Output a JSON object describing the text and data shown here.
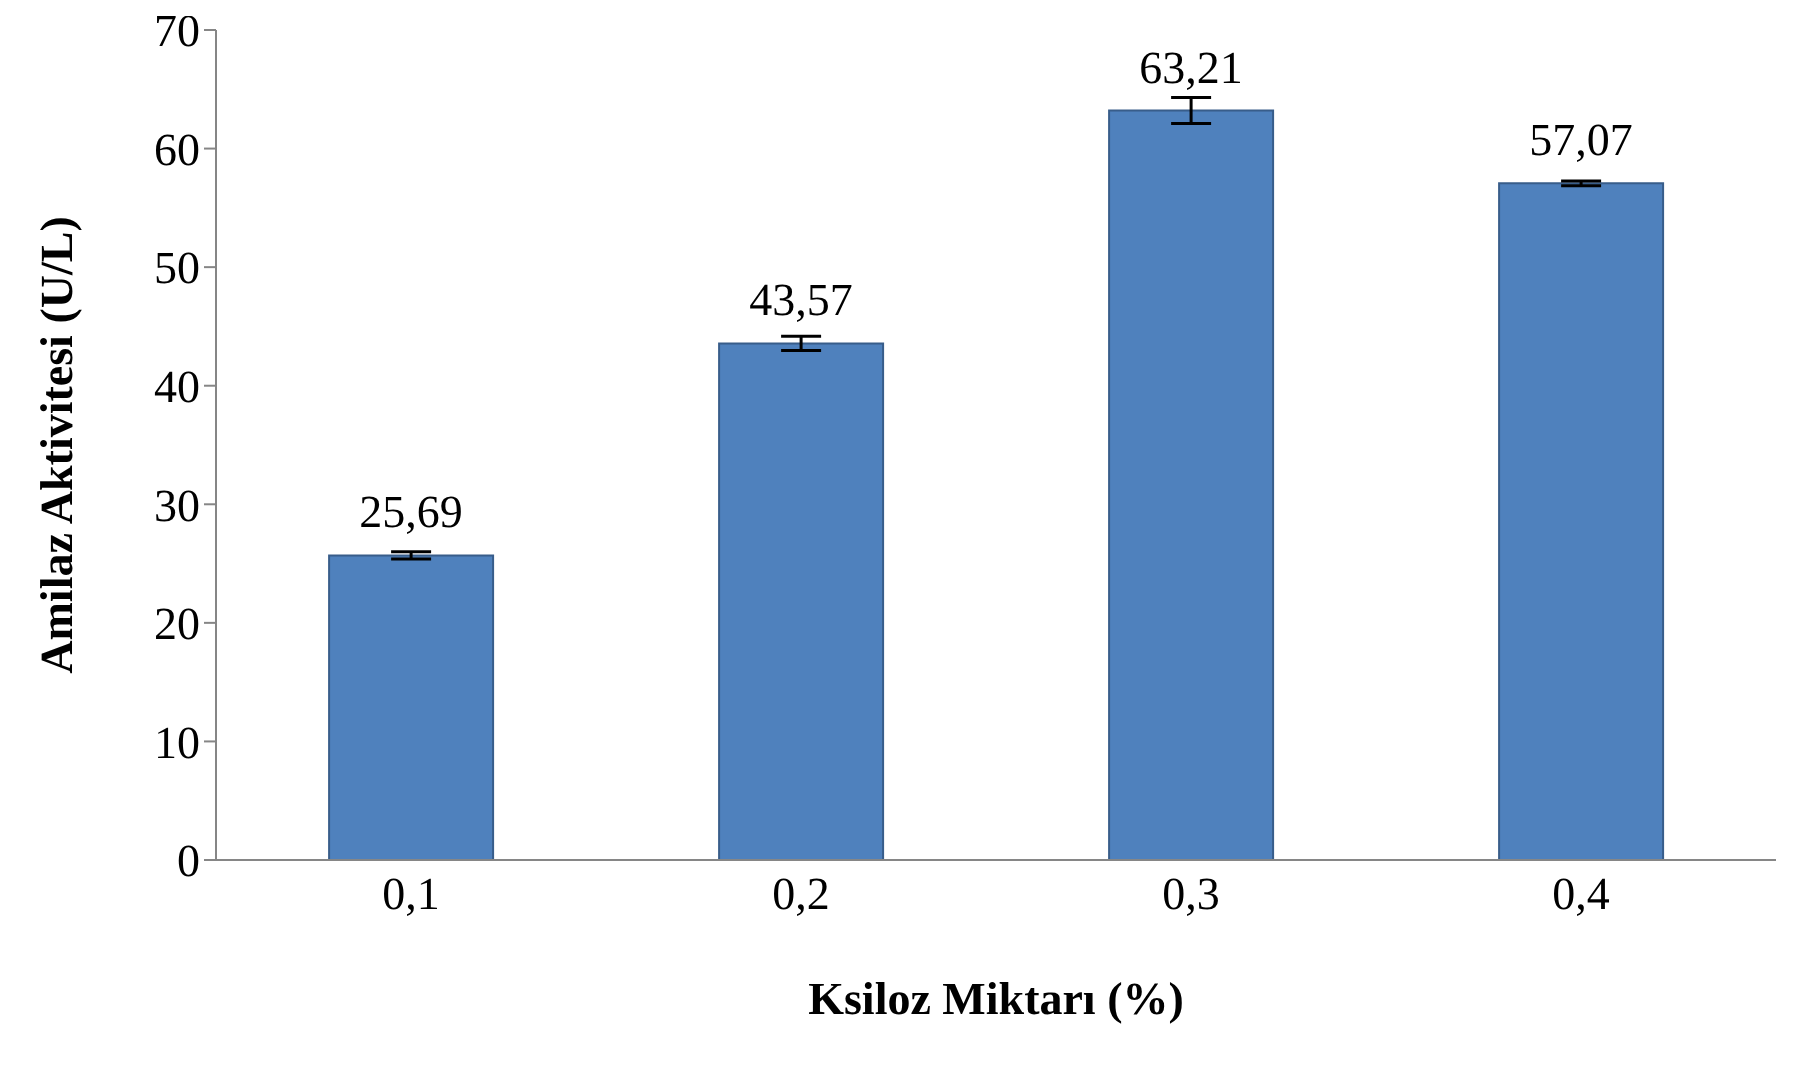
{
  "chart_data": {
    "type": "bar",
    "xlabel": "Ksiloz Miktarı (%)",
    "ylabel": "Amilaz Aktivitesi (U/L)",
    "categories": [
      "0,1",
      "0,2",
      "0,3",
      "0,4"
    ],
    "values": [
      25.69,
      43.57,
      63.21,
      57.07
    ],
    "value_labels": [
      "25,69",
      "43,57",
      "63,21",
      "57,07"
    ],
    "errors": [
      0.3,
      0.6,
      1.1,
      0.2
    ],
    "color": "#4f81bd",
    "ylim": [
      0,
      70
    ],
    "yticks": [
      0,
      10,
      20,
      30,
      40,
      50,
      60,
      70
    ],
    "grid": false
  }
}
